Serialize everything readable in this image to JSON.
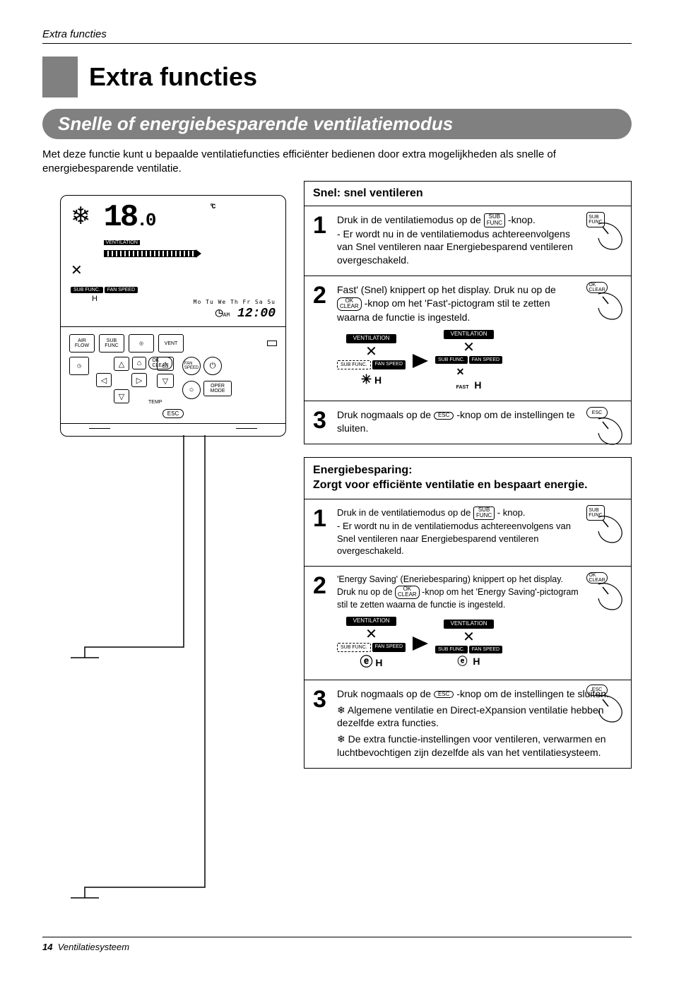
{
  "running_head": "Extra functies",
  "chapter_title": "Extra functies",
  "section_title": "Snelle of energiebesparende ventilatiemodus",
  "intro": "Met deze functie kunt u bepaalde ventilatiefuncties efficiënter bedienen door extra mogelijkheden als snelle of energiebesparende ventilatie.",
  "remote": {
    "snow_icon": "❄",
    "temp_value": "18",
    "temp_decimal": ".0",
    "temp_unit": "°C",
    "vent_label": "VENTILATION",
    "fan_icon": "✕",
    "sub_func": "SUB FUNC.",
    "fan_speed": "FAN SPEED",
    "level": "H",
    "days": "Mo Tu We Th Fr Sa Su",
    "clock_icon": "◷",
    "clock_ampm": "AM",
    "clock_time": "12:00",
    "btns": {
      "air_flow": "AIR\nFLOW",
      "sub_func_btn": "SUB\nFUNC",
      "target": "◎",
      "vent": "VENT",
      "fan_speed_btn": "FAN\nSPEED",
      "power": "⏻",
      "temp": "TEMP",
      "ok_clear": "OK\nCLEAR",
      "oper_mode": "OPER\nMODE",
      "esc": "ESC",
      "up": "△",
      "down": "▽",
      "left": "◁",
      "right": "▷",
      "home": "⌂",
      "circle": "○"
    }
  },
  "box_a": {
    "head": "Snel: snel ventileren",
    "s1_num": "1",
    "s1_l1": "Druk in de ventilatiemodus op de ",
    "s1_btn": "SUB\nFUNC",
    "s1_l1b": "-knop.",
    "s1_l2": "- Er wordt nu in de ventilatiemodus achtereenvolgens van Snel ventileren naar Energiebesparend ventileren overgeschakeld.",
    "s2_num": "2",
    "s2_l1": "Fast' (Snel) knippert op het display. Druk nu op de ",
    "s2_btn": "OK\nCLEAR",
    "s2_l1b": "-knop om het 'Fast'-pictogram stil te zetten waarna de functie is ingesteld.",
    "vd_vent": "VENTILATION",
    "vd_sub": "SUB FUNC.",
    "vd_fan": "FAN SPEED",
    "vd_h": "H",
    "vd_fast": "FAST",
    "s3_num": "3",
    "s3_l1": "Druk nogmaals op de ",
    "s3_btn": "ESC",
    "s3_l1b": "-knop om de instellingen te sluiten."
  },
  "box_b": {
    "head_l1": "Energiebesparing:",
    "head_l2": "Zorgt voor efficiënte ventilatie en bespaart energie.",
    "s1_num": "1",
    "s1_l1": "Druk in de ventilatiemodus op de ",
    "s1_btn": "SUB\nFUNC",
    "s1_l1b": " - knop.",
    "s1_l2": "- Er wordt nu in de ventilatiemodus achtereenvolgens van Snel ventileren naar Energiebesparend ventileren overgeschakeld.",
    "s2_num": "2",
    "s2_l1": "'Energy Saving' (Eneriebesparing) knippert op het display. Druk nu op de ",
    "s2_btn": "OK\nCLEAR",
    "s2_l1b": " -knop om het 'Energy Saving'-pictogram stil te zetten waarna de functie is ingesteld.",
    "vd_vent": "VENTILATION",
    "vd_sub": "SUB FUNC.",
    "vd_fan": "FAN SPEED",
    "vd_h": "H",
    "vd_eco": "ⓔ",
    "s3_num": "3",
    "s3_l1": "Druk nogmaals op de ",
    "s3_btn": "ESC",
    "s3_l1b": "-knop om de instellingen te sluiten.",
    "s3_b1": "Algemene ventilatie en Direct-eXpansion ventilatie hebben dezelfde extra functies.",
    "s3_b2": "De extra functie-instellingen voor ventileren, verwarmen en luchtbevochtigen zijn dezelfde als van het ventilatiesysteem."
  },
  "footer_page": "14",
  "footer_text": "Ventilatiesysteem"
}
